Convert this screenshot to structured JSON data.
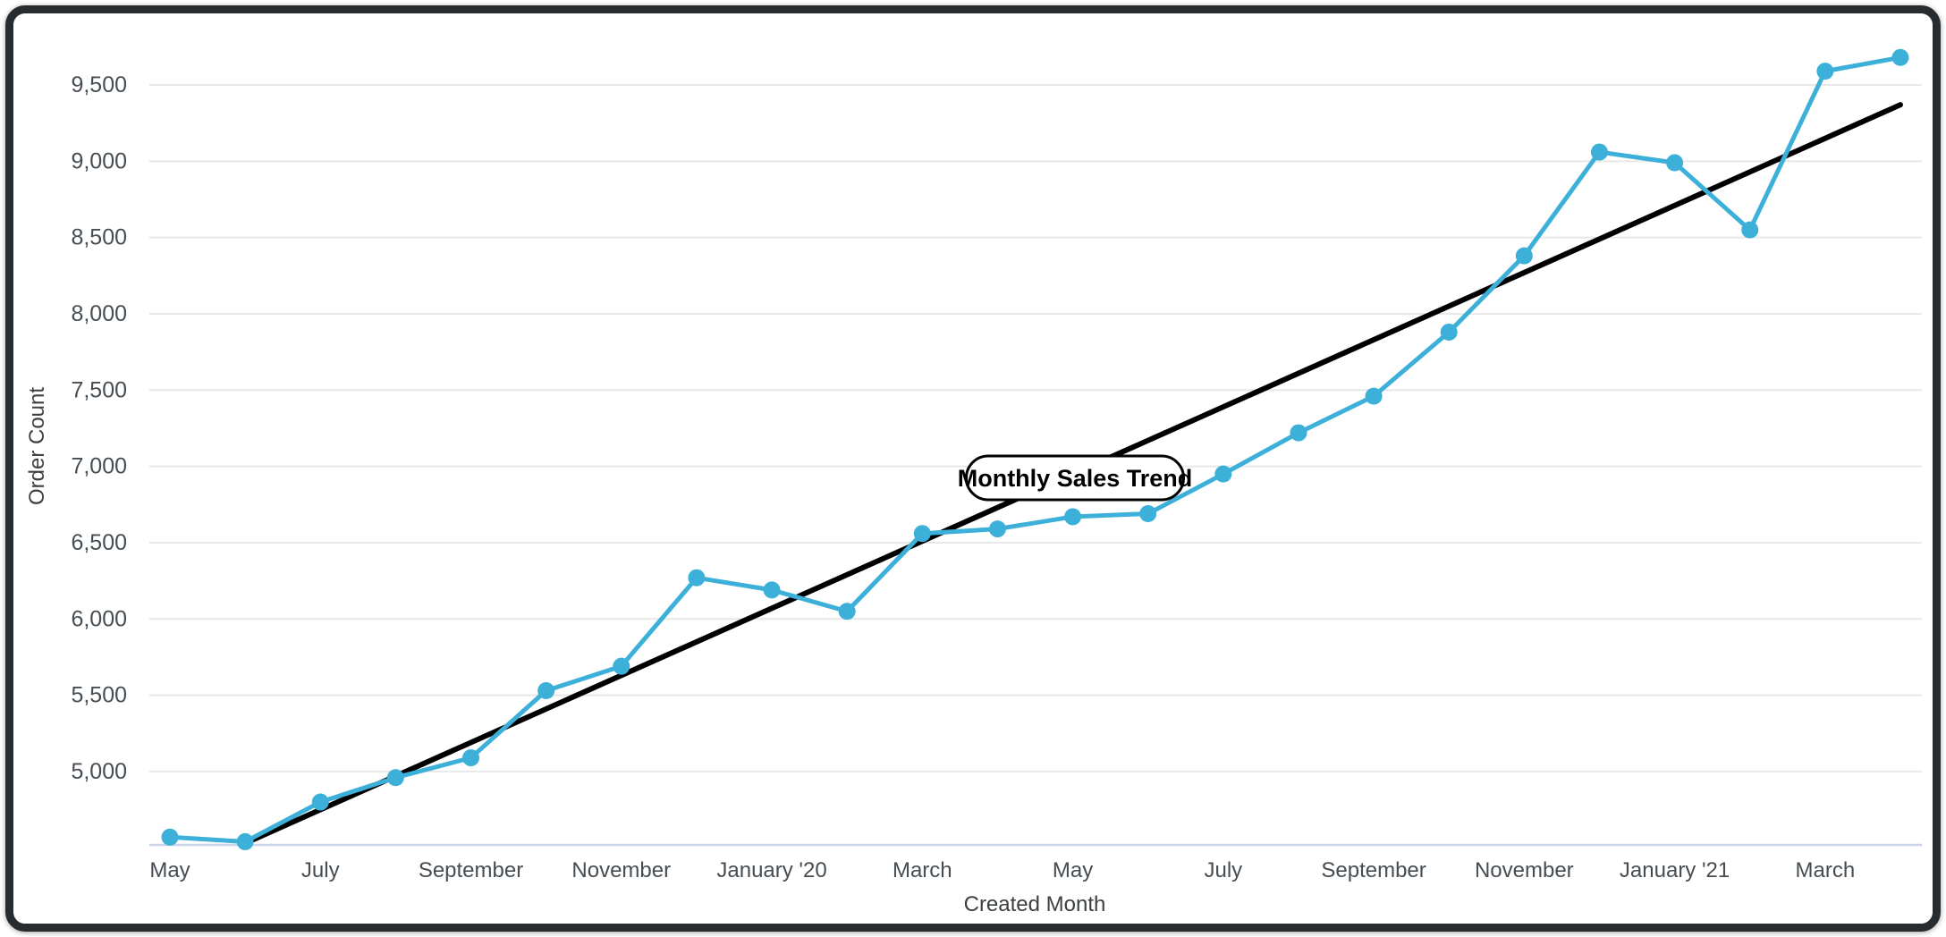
{
  "card": {
    "background": "#ffffff",
    "border_color": "#272c30"
  },
  "chart_data": {
    "type": "line",
    "title": "Monthly Sales Trend",
    "xlabel": "Created Month",
    "ylabel": "Order Count",
    "x": [
      "2019-05",
      "2019-06",
      "2019-07",
      "2019-08",
      "2019-09",
      "2019-10",
      "2019-11",
      "2019-12",
      "2020-01",
      "2020-02",
      "2020-03",
      "2020-04",
      "2020-05",
      "2020-06",
      "2020-07",
      "2020-08",
      "2020-09",
      "2020-10",
      "2020-11",
      "2020-12",
      "2021-01",
      "2021-02",
      "2021-03",
      "2021-04"
    ],
    "series": [
      {
        "name": "Order Count",
        "color": "#3CB0D8",
        "values": [
          4570,
          4540,
          4800,
          4960,
          5090,
          5530,
          5690,
          6270,
          6190,
          6050,
          6560,
          6590,
          6670,
          6690,
          6950,
          7220,
          7460,
          7880,
          8380,
          9060,
          8990,
          8550,
          9590,
          9680
        ]
      }
    ],
    "trendline": {
      "color": "#000000",
      "start_index": 1,
      "start_value": 4530,
      "end_index": 23,
      "end_value": 9370
    },
    "x_tick_labels": [
      "May",
      "July",
      "September",
      "November",
      "January '20",
      "March",
      "May",
      "July",
      "September",
      "November",
      "January '21",
      "March"
    ],
    "x_tick_indices": [
      0,
      2,
      4,
      6,
      8,
      10,
      12,
      14,
      16,
      18,
      20,
      22
    ],
    "y_tick_labels": [
      "5,000",
      "5,500",
      "6,000",
      "6,500",
      "7,000",
      "7,500",
      "8,000",
      "8,500",
      "9,000",
      "9,500"
    ],
    "y_tick_values": [
      5000,
      5500,
      6000,
      6500,
      7000,
      7500,
      8000,
      8500,
      9000,
      9500
    ],
    "ylim": [
      4520,
      9920
    ],
    "grid": true,
    "legend": "none",
    "annotation_pill": {
      "text": "Monthly Sales Trend",
      "fill": "#ffffff",
      "border": "#000000"
    },
    "colors": {
      "grid": "#e8e8e8",
      "axis_baseline": "#ccd6e8",
      "tick_text": "#464d52",
      "axis_title_text": "#3c4043",
      "marker": "#3CB0D8"
    }
  }
}
